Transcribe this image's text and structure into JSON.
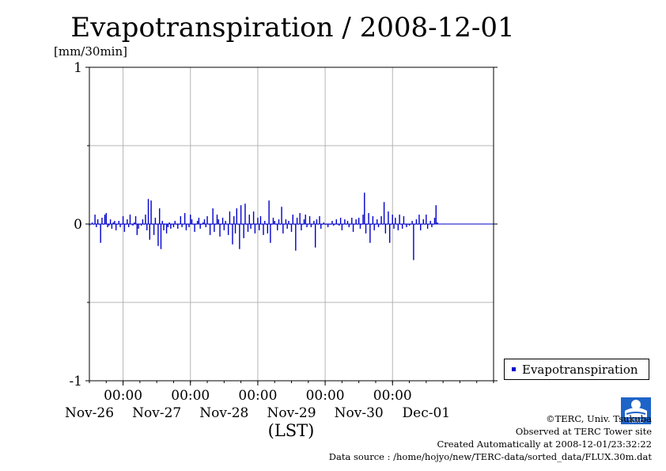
{
  "chart_data": {
    "type": "bar",
    "title": "Evapotranspiration / 2008-12-01",
    "unit_label": "[mm/30min]",
    "xlabel": "(LST)",
    "ylim": [
      -1,
      1
    ],
    "yticks": [
      -1,
      0,
      1
    ],
    "grid": true,
    "legend": "outside-right",
    "x_range_days": [
      -0.5,
      5.5
    ],
    "xticks": [
      {
        "time": "00:00",
        "date": "Nov-26"
      },
      {
        "time": "00:00",
        "date": "Nov-27"
      },
      {
        "time": "00:00",
        "date": "Nov-28"
      },
      {
        "time": "00:00",
        "date": "Nov-29"
      },
      {
        "time": "00:00",
        "date": "Nov-30"
      },
      {
        "time": "",
        "date": "Dec-01"
      }
    ],
    "series": [
      {
        "name": "Evapotranspiration",
        "color": "#0000c8",
        "interval_minutes": 30,
        "start_day": -0.5,
        "values": [
          -0.01,
          0.0,
          0.01,
          0.0,
          0.06,
          -0.02,
          0.03,
          0.0,
          -0.12,
          0.04,
          0.0,
          0.06,
          0.07,
          -0.02,
          -0.01,
          0.03,
          -0.03,
          0.01,
          0.02,
          -0.04,
          0.0,
          0.02,
          -0.02,
          0.0,
          0.05,
          -0.05,
          0.0,
          0.03,
          -0.02,
          0.06,
          0.0,
          -0.01,
          0.01,
          0.05,
          -0.07,
          -0.03,
          0.0,
          -0.01,
          0.03,
          0.0,
          0.06,
          -0.04,
          0.16,
          -0.1,
          0.15,
          0.0,
          -0.07,
          0.04,
          0.0,
          -0.14,
          0.1,
          -0.16,
          0.02,
          -0.04,
          0.0,
          -0.06,
          -0.02,
          0.01,
          -0.03,
          0.0,
          -0.02,
          0.02,
          0.0,
          -0.03,
          0.0,
          0.05,
          -0.02,
          0.0,
          0.07,
          -0.04,
          0.0,
          -0.02,
          0.06,
          0.03,
          0.0,
          -0.05,
          0.0,
          0.02,
          0.04,
          -0.03,
          0.0,
          0.01,
          0.03,
          -0.02,
          0.05,
          0.0,
          -0.07,
          0.0,
          0.1,
          -0.05,
          0.0,
          0.06,
          0.03,
          -0.08,
          0.0,
          0.04,
          -0.04,
          0.02,
          0.0,
          -0.07,
          0.08,
          0.0,
          -0.13,
          0.05,
          -0.06,
          0.1,
          0.0,
          -0.16,
          0.12,
          0.0,
          -0.09,
          0.13,
          0.0,
          -0.05,
          0.06,
          -0.03,
          0.0,
          0.08,
          -0.06,
          0.0,
          0.04,
          -0.04,
          0.05,
          0.0,
          -0.07,
          0.02,
          0.0,
          -0.06,
          0.15,
          -0.12,
          0.0,
          0.04,
          0.02,
          0.0,
          -0.04,
          0.03,
          0.0,
          0.11,
          -0.06,
          0.0,
          0.03,
          -0.03,
          0.02,
          0.0,
          -0.05,
          0.06,
          0.0,
          -0.17,
          0.04,
          0.0,
          0.07,
          -0.04,
          0.0,
          0.03,
          0.06,
          -0.02,
          0.0,
          0.05,
          -0.02,
          0.0,
          0.02,
          -0.15,
          0.03,
          0.0,
          0.05,
          -0.03,
          0.0,
          0.01,
          0.0,
          0.0,
          -0.02,
          0.0,
          0.0,
          0.02,
          -0.01,
          0.0,
          0.03,
          0.0,
          -0.01,
          0.04,
          -0.04,
          0.0,
          0.03,
          0.0,
          0.02,
          -0.02,
          0.0,
          0.04,
          -0.05,
          0.0,
          0.03,
          0.0,
          0.04,
          -0.03,
          0.0,
          0.06,
          0.2,
          -0.06,
          0.0,
          0.07,
          -0.12,
          0.0,
          0.05,
          -0.04,
          0.0,
          0.03,
          -0.02,
          0.0,
          0.05,
          0.0,
          0.14,
          -0.06,
          0.0,
          0.08,
          -0.12,
          0.0,
          0.06,
          -0.03,
          0.04,
          0.0,
          -0.04,
          0.06,
          0.0,
          -0.03,
          0.05,
          0.0,
          -0.02,
          0.0,
          -0.01,
          0.0,
          0.02,
          -0.23,
          0.0,
          0.03,
          0.0,
          0.06,
          -0.04,
          0.0,
          0.03,
          0.0,
          0.06,
          -0.03,
          0.0,
          0.02,
          -0.02,
          0.0,
          0.04,
          0.12,
          0.01
        ]
      }
    ]
  },
  "legend": {
    "label": "Evapotranspiration"
  },
  "credits": {
    "line1": "©TERC, Univ. Tsukuba",
    "line2": "Observed at TERC Tower site",
    "line3": "Created Automatically at 2008-12-01/23:32:22",
    "line4": "Data source : /home/hojyo/new/TERC-data/sorted_data/FLUX.30m.dat"
  },
  "logo": {
    "text": "TERC",
    "color": "#1e64c8"
  }
}
